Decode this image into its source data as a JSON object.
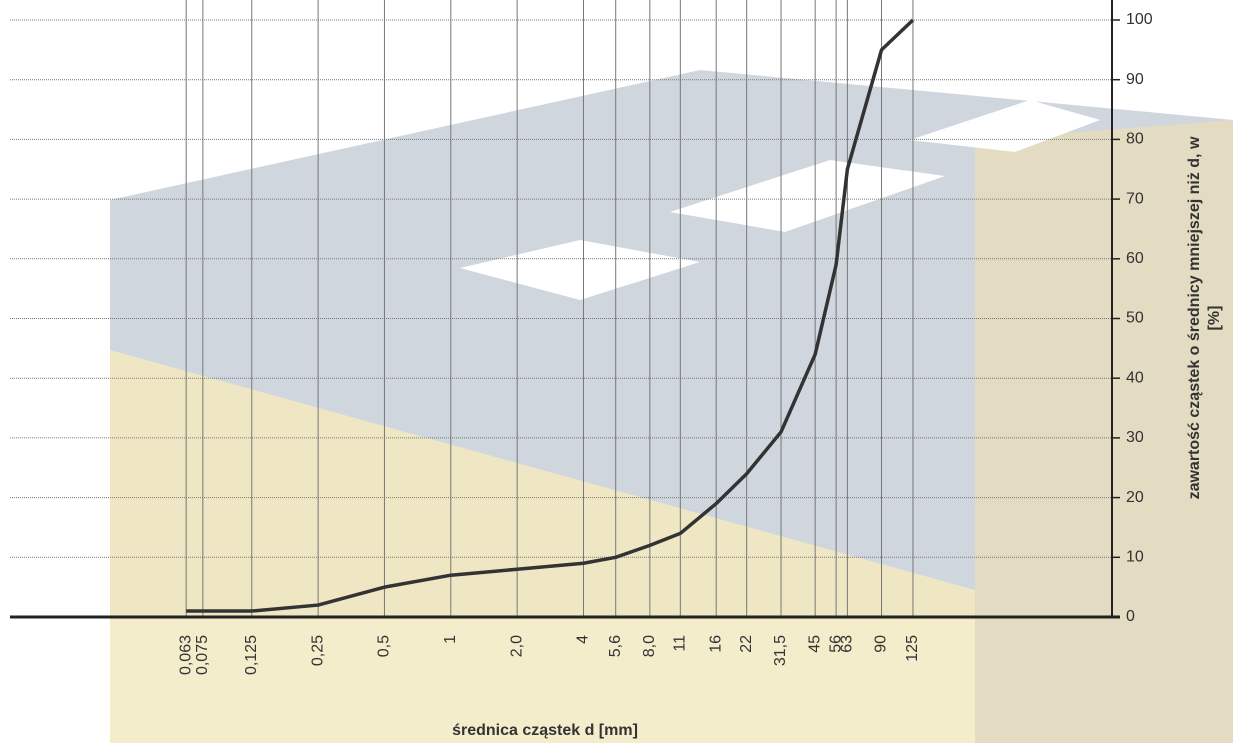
{
  "chart_data": {
    "type": "line",
    "xlabel": "średnica cząstek d [mm]",
    "ylabel": [
      "zawartość cząstek o średnicy mniejszej niż d, w",
      "[%]"
    ],
    "x": [
      0.063,
      0.125,
      0.25,
      0.5,
      1,
      2,
      4,
      5.6,
      8,
      11,
      16,
      22,
      31.5,
      45,
      56,
      63,
      90,
      125
    ],
    "series": [
      {
        "color": "#333333",
        "values": [
          1,
          1,
          2,
          5,
          7,
          8,
          9,
          10,
          12,
          14,
          19,
          24,
          31,
          44,
          59,
          75,
          95,
          100
        ]
      }
    ],
    "xscale": "log",
    "xlim": [
      0.01,
      1000
    ],
    "xticks": [
      {
        "value": 0.063,
        "label": "0,063"
      },
      {
        "value": 0.075,
        "label": "0,075"
      },
      {
        "value": 0.125,
        "label": "0,125"
      },
      {
        "value": 0.25,
        "label": "0,25"
      },
      {
        "value": 0.5,
        "label": "0,5"
      },
      1,
      {
        "value": 2,
        "label": "2,0"
      },
      4,
      {
        "value": 5.6,
        "label": "5,6"
      },
      {
        "value": 8,
        "label": "8,0"
      },
      11,
      16,
      22,
      {
        "value": 31.5,
        "label": "31,5"
      },
      45,
      56,
      63,
      90,
      125
    ],
    "ylim": [
      0,
      100
    ],
    "yticks": [
      0,
      10,
      20,
      30,
      40,
      50,
      60,
      70,
      80,
      90,
      100
    ],
    "grid": true
  }
}
